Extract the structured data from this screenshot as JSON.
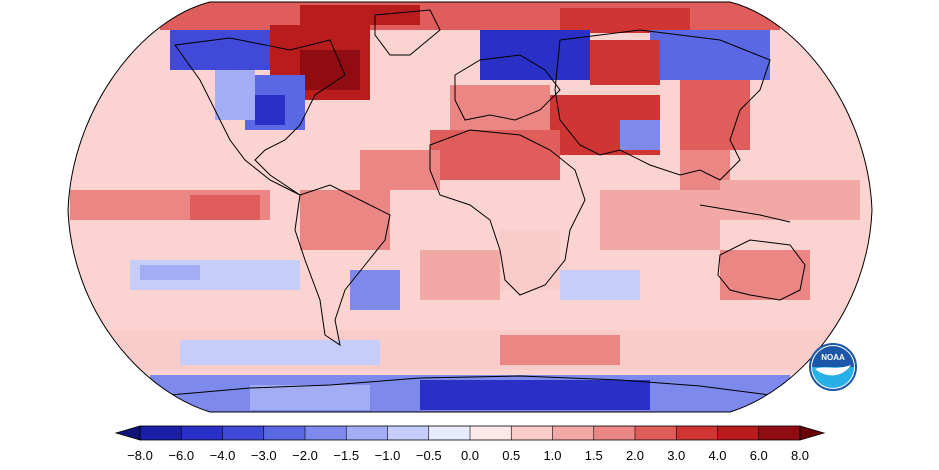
{
  "map": {
    "projection": "robinson",
    "graticule": false,
    "country_borders": true,
    "coastline_color": "#000000"
  },
  "legend": {
    "ticks": [
      "−8.0",
      "−6.0",
      "−4.0",
      "−3.0",
      "−2.0",
      "−1.5",
      "−1.0",
      "−0.5",
      "0.0",
      "0.5",
      "1.0",
      "1.5",
      "2.0",
      "3.0",
      "4.0",
      "6.0",
      "8.0"
    ],
    "bins": [
      {
        "from": -8.0,
        "to": -6.0,
        "color": "#1b1fa8"
      },
      {
        "from": -6.0,
        "to": -4.0,
        "color": "#2a2fc6"
      },
      {
        "from": -4.0,
        "to": -3.0,
        "color": "#4049d8"
      },
      {
        "from": -3.0,
        "to": -2.0,
        "color": "#5b68e3"
      },
      {
        "from": -2.0,
        "to": -1.5,
        "color": "#7d8aec"
      },
      {
        "from": -1.5,
        "to": -1.0,
        "color": "#a3adf3"
      },
      {
        "from": -1.0,
        "to": -0.5,
        "color": "#c6cdf8"
      },
      {
        "from": -0.5,
        "to": 0.0,
        "color": "#e7ebfd"
      },
      {
        "from": 0.0,
        "to": 0.5,
        "color": "#fde9e8"
      },
      {
        "from": 0.5,
        "to": 1.0,
        "color": "#f9cbc9"
      },
      {
        "from": 1.0,
        "to": 1.5,
        "color": "#f2a9a6"
      },
      {
        "from": 1.5,
        "to": 2.0,
        "color": "#ea8683"
      },
      {
        "from": 2.0,
        "to": 3.0,
        "color": "#df5e5b"
      },
      {
        "from": 3.0,
        "to": 4.0,
        "color": "#cf3533"
      },
      {
        "from": 4.0,
        "to": 6.0,
        "color": "#b81c1c"
      },
      {
        "from": 6.0,
        "to": 8.0,
        "color": "#8f0d12"
      }
    ],
    "below_color": "#10137a",
    "above_color": "#6a0008"
  },
  "logo": {
    "text": "NOAA",
    "colors": {
      "sky": "#1c57a8",
      "bird": "#ffffff",
      "sea": "#27b0e6"
    }
  }
}
